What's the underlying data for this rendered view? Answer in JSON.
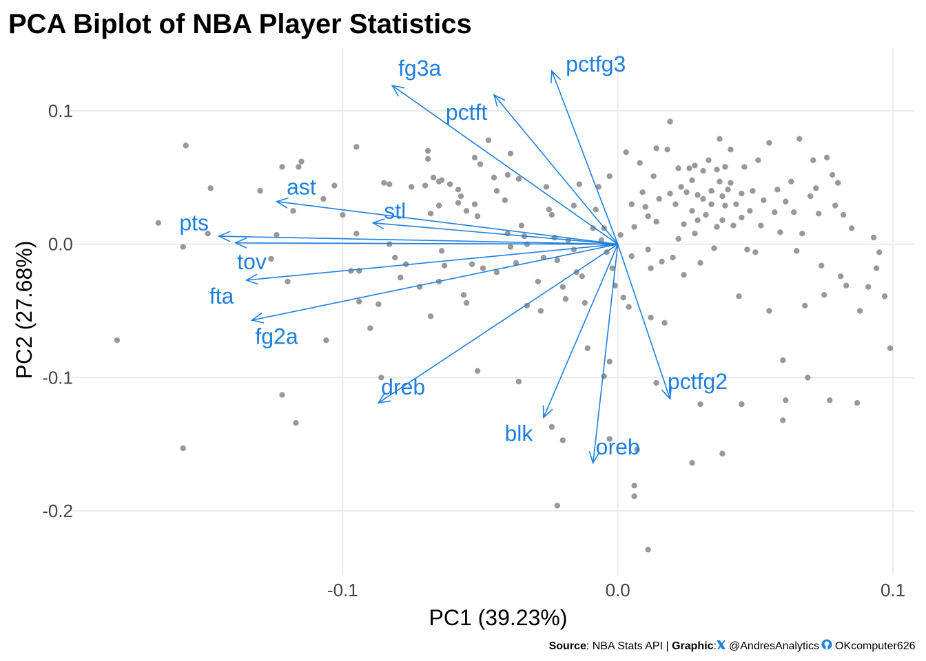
{
  "chart_data": {
    "type": "scatter",
    "title": "PCA Biplot of NBA Player Statistics",
    "xlabel": "PC1 (39.23%)",
    "ylabel": "PC2 (27.68%)",
    "xlim": [
      -0.2,
      0.108
    ],
    "ylim": [
      -0.248,
      0.147
    ],
    "x_ticks": [
      -0.1,
      0.0,
      0.1
    ],
    "x_tick_labels": [
      "-0.1",
      "0.0",
      "0.1"
    ],
    "y_ticks": [
      -0.2,
      -0.1,
      0.0,
      0.1
    ],
    "y_tick_labels": [
      "-0.2",
      "-0.1",
      "0.0",
      "0.1"
    ],
    "grid": true,
    "colors": {
      "points": "#999999",
      "loadings": "#1f7fe0",
      "grid": "#ebebeb"
    },
    "loadings": [
      {
        "label": "fg3a",
        "x": -0.082,
        "y": 0.119,
        "label_x": -0.072,
        "label_y": 0.132
      },
      {
        "label": "pctft",
        "x": -0.045,
        "y": 0.112,
        "label_x": -0.055,
        "label_y": 0.099
      },
      {
        "label": "pctfg3",
        "x": -0.024,
        "y": 0.13,
        "label_x": -0.008,
        "label_y": 0.135
      },
      {
        "label": "ast",
        "x": -0.124,
        "y": 0.032,
        "label_x": -0.115,
        "label_y": 0.043
      },
      {
        "label": "stl",
        "x": -0.089,
        "y": 0.016,
        "label_x": -0.081,
        "label_y": 0.025
      },
      {
        "label": "pts",
        "x": -0.145,
        "y": 0.006,
        "label_x": -0.154,
        "label_y": 0.016
      },
      {
        "label": "tov",
        "x": -0.139,
        "y": 0.001,
        "label_x": -0.133,
        "label_y": -0.013
      },
      {
        "label": "fta",
        "x": -0.135,
        "y": -0.027,
        "label_x": -0.144,
        "label_y": -0.039
      },
      {
        "label": "fg2a",
        "x": -0.133,
        "y": -0.057,
        "label_x": -0.124,
        "label_y": -0.069
      },
      {
        "label": "dreb",
        "x": -0.087,
        "y": -0.119,
        "label_x": -0.078,
        "label_y": -0.107
      },
      {
        "label": "blk",
        "x": -0.027,
        "y": -0.13,
        "label_x": -0.036,
        "label_y": -0.142
      },
      {
        "label": "oreb",
        "x": -0.009,
        "y": -0.164,
        "label_x": 0.0,
        "label_y": -0.152
      },
      {
        "label": "pctfg2",
        "x": 0.019,
        "y": -0.116,
        "label_x": 0.029,
        "label_y": -0.103
      }
    ],
    "points": [
      [
        -0.182,
        -0.072
      ],
      [
        -0.157,
        0.074
      ],
      [
        -0.158,
        -0.153
      ],
      [
        -0.167,
        0.016
      ],
      [
        -0.158,
        -0.002
      ],
      [
        -0.149,
        0.008
      ],
      [
        -0.148,
        0.042
      ],
      [
        -0.122,
        0.058
      ],
      [
        -0.116,
        0.058
      ],
      [
        -0.115,
        0.062
      ],
      [
        -0.118,
        0.025
      ],
      [
        -0.124,
        0.007
      ],
      [
        -0.126,
        -0.011
      ],
      [
        -0.12,
        -0.028
      ],
      [
        -0.13,
        0.04
      ],
      [
        -0.122,
        -0.113
      ],
      [
        -0.117,
        -0.134
      ],
      [
        -0.107,
        0.034
      ],
      [
        -0.103,
        0.044
      ],
      [
        -0.106,
        -0.072
      ],
      [
        -0.095,
        0.073
      ],
      [
        -0.094,
        -0.02
      ],
      [
        -0.094,
        -0.043
      ],
      [
        -0.09,
        -0.063
      ],
      [
        -0.086,
        -0.1
      ],
      [
        -0.095,
        0.008
      ],
      [
        -0.085,
        0.046
      ],
      [
        -0.083,
        0.045
      ],
      [
        -0.083,
        0.0
      ],
      [
        -0.081,
        -0.01
      ],
      [
        -0.077,
        -0.015
      ],
      [
        -0.075,
        0.043
      ],
      [
        -0.07,
        0.044
      ],
      [
        -0.069,
        0.07
      ],
      [
        -0.069,
        0.064
      ],
      [
        -0.067,
        0.05
      ],
      [
        -0.065,
        0.047
      ],
      [
        -0.064,
        0.048
      ],
      [
        -0.065,
        0.029
      ],
      [
        -0.068,
        0.023
      ],
      [
        -0.064,
        -0.005
      ],
      [
        -0.063,
        -0.016
      ],
      [
        -0.065,
        -0.028
      ],
      [
        -0.068,
        -0.054
      ],
      [
        -0.061,
        0.045
      ],
      [
        -0.058,
        0.041
      ],
      [
        -0.057,
        0.036
      ],
      [
        -0.058,
        0.031
      ],
      [
        -0.055,
        0.025
      ],
      [
        -0.052,
        0.065
      ],
      [
        -0.05,
        0.06
      ],
      [
        -0.052,
        0.03
      ],
      [
        -0.051,
        0.021
      ],
      [
        -0.053,
        -0.015
      ],
      [
        -0.055,
        -0.044
      ],
      [
        -0.051,
        -0.095
      ],
      [
        -0.047,
        0.078
      ],
      [
        -0.045,
        0.05
      ],
      [
        -0.044,
        0.04
      ],
      [
        -0.041,
        0.033
      ],
      [
        -0.039,
        0.068
      ],
      [
        -0.04,
        0.052
      ],
      [
        -0.04,
        0.008
      ],
      [
        -0.039,
        -0.002
      ],
      [
        -0.037,
        -0.014
      ],
      [
        -0.036,
        0.049
      ],
      [
        -0.035,
        0.014
      ],
      [
        -0.034,
        0.006
      ],
      [
        -0.033,
        0.0
      ],
      [
        -0.033,
        -0.046
      ],
      [
        -0.029,
        -0.028
      ],
      [
        -0.028,
        -0.05
      ],
      [
        -0.027,
        -0.01
      ],
      [
        -0.026,
        0.043
      ],
      [
        -0.025,
        0.026
      ],
      [
        -0.024,
        0.022
      ],
      [
        -0.023,
        0.005
      ],
      [
        -0.022,
        -0.012
      ],
      [
        -0.02,
        -0.032
      ],
      [
        -0.019,
        -0.041
      ],
      [
        -0.02,
        -0.147
      ],
      [
        -0.018,
        0.003
      ],
      [
        -0.016,
        0.029
      ],
      [
        -0.016,
        -0.004
      ],
      [
        -0.015,
        -0.021
      ],
      [
        -0.014,
        0.045
      ],
      [
        -0.013,
        -0.024
      ],
      [
        -0.012,
        -0.044
      ],
      [
        -0.011,
        -0.078
      ],
      [
        -0.009,
        0.012
      ],
      [
        -0.008,
        0.026
      ],
      [
        -0.007,
        0.043
      ],
      [
        -0.006,
        0.003
      ],
      [
        -0.005,
        0.012
      ],
      [
        -0.004,
        -0.006
      ],
      [
        -0.003,
        0.051
      ],
      [
        -0.002,
        -0.018
      ],
      [
        -0.001,
        -0.031
      ],
      [
        -0.003,
        -0.088
      ],
      [
        -0.003,
        -0.146
      ],
      [
        0.001,
        0.007
      ],
      [
        0.002,
        -0.04
      ],
      [
        0.003,
        0.069
      ],
      [
        0.005,
        0.03
      ],
      [
        0.006,
        0.013
      ],
      [
        0.005,
        -0.009
      ],
      [
        0.004,
        -0.047
      ],
      [
        0.007,
        -0.154
      ],
      [
        0.008,
        0.061
      ],
      [
        0.009,
        0.039
      ],
      [
        0.01,
        0.028
      ],
      [
        0.011,
        0.021
      ],
      [
        0.011,
        -0.004
      ],
      [
        0.012,
        -0.018
      ],
      [
        0.012,
        -0.055
      ],
      [
        0.014,
        0.072
      ],
      [
        0.013,
        0.051
      ],
      [
        0.015,
        0.034
      ],
      [
        0.014,
        0.017
      ],
      [
        0.016,
        -0.013
      ],
      [
        0.017,
        -0.059
      ],
      [
        0.018,
        0.071
      ],
      [
        0.019,
        0.038
      ],
      [
        0.019,
        0.092
      ],
      [
        0.02,
        -0.01
      ],
      [
        0.021,
        0.03
      ],
      [
        0.022,
        0.057
      ],
      [
        0.022,
        0.004
      ],
      [
        0.023,
        0.043
      ],
      [
        0.024,
        0.015
      ],
      [
        0.024,
        -0.023
      ],
      [
        0.025,
        0.039
      ],
      [
        0.026,
        0.057
      ],
      [
        0.027,
        0.048
      ],
      [
        0.027,
        0.025
      ],
      [
        0.028,
        0.008
      ],
      [
        0.028,
        0.059
      ],
      [
        0.029,
        0.037
      ],
      [
        0.029,
        0.018
      ],
      [
        0.03,
        -0.014
      ],
      [
        0.03,
        -0.12
      ],
      [
        0.031,
        0.055
      ],
      [
        0.031,
        0.034
      ],
      [
        0.032,
        0.022
      ],
      [
        0.033,
        0.063
      ],
      [
        0.034,
        0.04
      ],
      [
        0.034,
        0.03
      ],
      [
        0.035,
        -0.003
      ],
      [
        0.036,
        0.056
      ],
      [
        0.036,
        0.013
      ],
      [
        0.037,
        0.047
      ],
      [
        0.037,
        0.079
      ],
      [
        0.038,
        0.036
      ],
      [
        0.038,
        0.018
      ],
      [
        0.039,
        0.029
      ],
      [
        0.039,
        0.058
      ],
      [
        0.04,
        0.041
      ],
      [
        0.041,
        0.071
      ],
      [
        0.041,
        0.046
      ],
      [
        0.042,
        0.014
      ],
      [
        0.043,
        0.03
      ],
      [
        0.044,
        -0.039
      ],
      [
        0.045,
        0.038
      ],
      [
        0.045,
        0.02
      ],
      [
        0.046,
        0.058
      ],
      [
        0.047,
        -0.004
      ],
      [
        0.048,
        0.025
      ],
      [
        0.049,
        0.04
      ],
      [
        0.05,
        -0.006
      ],
      [
        0.051,
        0.063
      ],
      [
        0.052,
        0.014
      ],
      [
        0.053,
        0.033
      ],
      [
        0.055,
        0.076
      ],
      [
        0.055,
        -0.05
      ],
      [
        0.057,
        0.024
      ],
      [
        0.058,
        0.041
      ],
      [
        0.059,
        0.009
      ],
      [
        0.06,
        -0.087
      ],
      [
        0.061,
        0.032
      ],
      [
        0.061,
        -0.117
      ],
      [
        0.063,
        0.047
      ],
      [
        0.064,
        0.024
      ],
      [
        0.065,
        -0.005
      ],
      [
        0.066,
        0.079
      ],
      [
        0.067,
        0.008
      ],
      [
        0.068,
        -0.046
      ],
      [
        0.069,
        -0.1
      ],
      [
        0.07,
        0.036
      ],
      [
        0.071,
        0.063
      ],
      [
        0.072,
        0.042
      ],
      [
        0.073,
        0.023
      ],
      [
        0.074,
        -0.016
      ],
      [
        0.075,
        -0.038
      ],
      [
        0.076,
        0.065
      ],
      [
        0.077,
        -0.117
      ],
      [
        0.078,
        0.052
      ],
      [
        0.079,
        0.029
      ],
      [
        0.08,
        0.046
      ],
      [
        0.081,
        -0.024
      ],
      [
        0.082,
        0.022
      ],
      [
        0.083,
        -0.031
      ],
      [
        0.085,
        0.012
      ],
      [
        0.087,
        -0.119
      ],
      [
        0.088,
        -0.05
      ],
      [
        0.091,
        -0.032
      ],
      [
        0.093,
        0.005
      ],
      [
        0.095,
        -0.006
      ],
      [
        0.097,
        -0.039
      ],
      [
        0.099,
        -0.078
      ],
      [
        0.094,
        -0.018
      ],
      [
        0.06,
        -0.132
      ],
      [
        0.045,
        -0.12
      ],
      [
        0.038,
        -0.157
      ],
      [
        0.027,
        -0.164
      ],
      [
        0.014,
        -0.104
      ],
      [
        0.011,
        -0.229
      ],
      [
        0.006,
        -0.181
      ],
      [
        0.006,
        -0.189
      ],
      [
        -0.005,
        -0.099
      ],
      [
        -0.022,
        -0.196
      ],
      [
        -0.024,
        -0.137
      ],
      [
        -0.036,
        -0.103
      ],
      [
        -0.044,
        -0.021
      ],
      [
        -0.049,
        -0.018
      ],
      [
        -0.056,
        -0.038
      ],
      [
        -0.072,
        -0.032
      ],
      [
        -0.079,
        -0.025
      ],
      [
        -0.087,
        -0.045
      ],
      [
        -0.097,
        -0.02
      ],
      [
        -0.1,
        0.022
      ]
    ]
  },
  "caption": {
    "source_label": "Source",
    "source_text": ": NBA Stats API | ",
    "graphic_label": "Graphic",
    "graphic_sep": ":",
    "x_handle": "@AndresAnalytics",
    "github_handle": "OKcomputer626",
    "x_icon": "x-logo-icon",
    "github_icon": "github-logo-icon"
  }
}
